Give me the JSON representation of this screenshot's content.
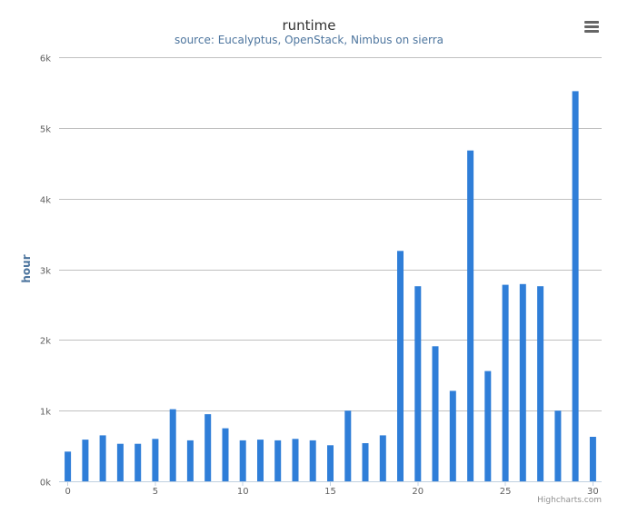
{
  "chart_data": {
    "type": "bar",
    "title": "runtime",
    "subtitle": "source: Eucalyptus, OpenStack, Nimbus on sierra",
    "ylabel": "hour",
    "xlabel": "",
    "x": [
      0,
      1,
      2,
      3,
      4,
      5,
      6,
      7,
      8,
      9,
      10,
      11,
      12,
      13,
      14,
      15,
      16,
      17,
      18,
      19,
      20,
      21,
      22,
      23,
      24,
      25,
      26,
      27,
      28,
      29,
      30
    ],
    "values": [
      420,
      590,
      650,
      530,
      530,
      600,
      1020,
      580,
      950,
      750,
      580,
      590,
      580,
      600,
      580,
      510,
      1000,
      540,
      650,
      3260,
      2760,
      1910,
      1280,
      4680,
      1560,
      2780,
      2790,
      2760,
      1000,
      5520,
      630
    ],
    "ylim": [
      0,
      6000
    ],
    "xlim": [
      -0.5,
      30.5
    ],
    "y_ticks": [
      "0k",
      "1k",
      "2k",
      "3k",
      "4k",
      "5k",
      "6k"
    ],
    "x_ticks": [
      "0",
      "5",
      "10",
      "15",
      "20",
      "25",
      "30"
    ],
    "x_tick_values": [
      0,
      5,
      10,
      15,
      20,
      25,
      30
    ],
    "y_tick_values": [
      0,
      1000,
      2000,
      3000,
      4000,
      5000,
      6000
    ],
    "grid": true,
    "legend": "none",
    "bar_color": "#2f7ed8"
  },
  "credits": "Highcharts.com",
  "menu_icon": "hamburger-menu-icon"
}
